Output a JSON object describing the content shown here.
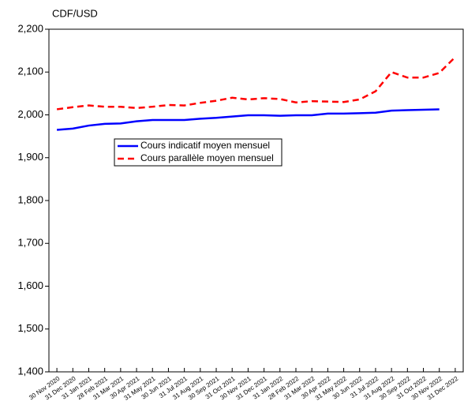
{
  "chart_data": {
    "type": "line",
    "y_label": "CDF/USD",
    "categories": [
      "30 Nov 2020",
      "31 Dec 2020",
      "31 Jan 2021",
      "28 Feb 2021",
      "31 Mar 2021",
      "30 Apr 2021",
      "31 May 2021",
      "30 Jun 2021",
      "31 Jul 2021",
      "31 Aug 2021",
      "30 Sep 2021",
      "31 Oct 2021",
      "30 Nov 2021",
      "31 Dec 2021",
      "31 Jan 2022",
      "28 Feb 2022",
      "31 Mar 2022",
      "30 Apr 2022",
      "31 May 2022",
      "30 Jun 2022",
      "31 Jul 2022",
      "31 Aug 2022",
      "30 Sep 2022",
      "31 Oct 2022",
      "30 Nov 2022",
      "31 Dec 2022"
    ],
    "series": [
      {
        "name": "Cours indicatif moyen mensuel",
        "color": "#0000ff",
        "dash": false,
        "values": [
          1965,
          1968,
          1975,
          1979,
          1980,
          1985,
          1988,
          1988,
          1988,
          1991,
          1993,
          1996,
          1999,
          1999,
          1998,
          1999,
          1999,
          2003,
          2003,
          2004,
          2005,
          2010,
          2011,
          2012,
          2013,
          null
        ]
      },
      {
        "name": "Cours parallèle moyen mensuel",
        "color": "#ff0000",
        "dash": true,
        "values": [
          2013,
          2018,
          2022,
          2019,
          2019,
          2016,
          2019,
          2023,
          2022,
          2028,
          2033,
          2040,
          2036,
          2039,
          2037,
          2029,
          2032,
          2031,
          2030,
          2036,
          2055,
          2100,
          2087,
          2087,
          2098,
          2135
        ]
      }
    ],
    "ylim": [
      1400,
      2200
    ],
    "yticks": [
      {
        "value": 1400,
        "label": "1,400"
      },
      {
        "value": 1500,
        "label": "1,500"
      },
      {
        "value": 1600,
        "label": "1,600"
      },
      {
        "value": 1700,
        "label": "1,700"
      },
      {
        "value": 1800,
        "label": "1,800"
      },
      {
        "value": 1900,
        "label": "1,900"
      },
      {
        "value": 2000,
        "label": "2,000"
      },
      {
        "value": 2100,
        "label": "2,100"
      },
      {
        "value": 2200,
        "label": "2,200"
      }
    ],
    "grid": false
  }
}
